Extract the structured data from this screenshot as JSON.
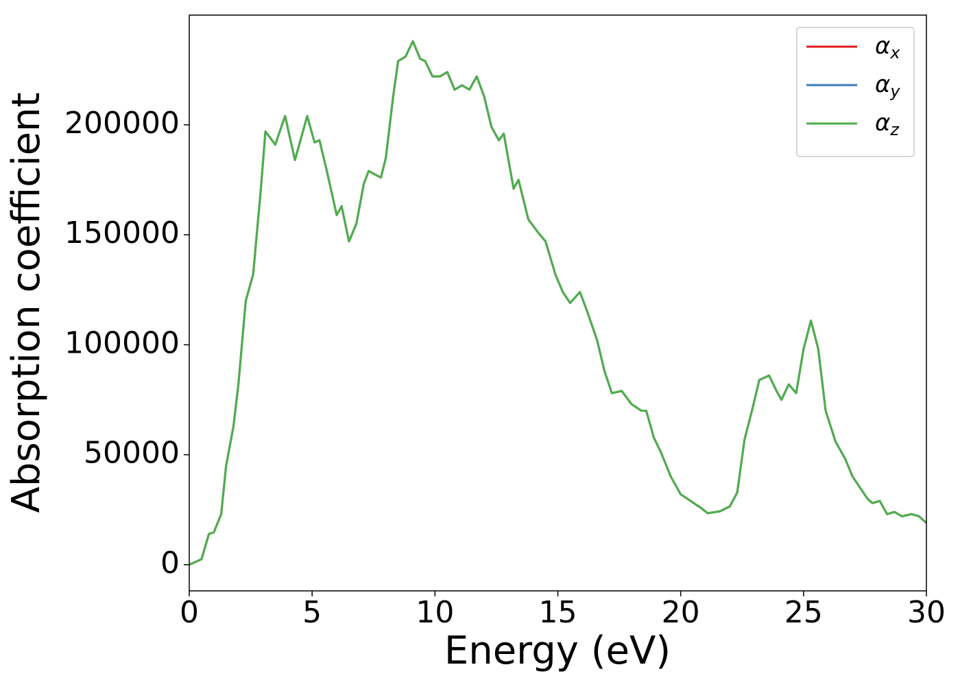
{
  "chart_data": {
    "type": "line",
    "xlabel": "Energy (eV)",
    "ylabel": "Absorption coefficient",
    "x": [
      0,
      0.5,
      0.8,
      1.0,
      1.3,
      1.5,
      1.8,
      2.0,
      2.3,
      2.6,
      2.9,
      3.1,
      3.5,
      3.9,
      4.3,
      4.8,
      5.1,
      5.3,
      5.6,
      6.0,
      6.2,
      6.5,
      6.8,
      7.1,
      7.3,
      7.8,
      8.0,
      8.3,
      8.5,
      8.8,
      9.1,
      9.4,
      9.6,
      9.9,
      10.2,
      10.5,
      10.8,
      11.1,
      11.4,
      11.7,
      12.0,
      12.3,
      12.6,
      12.8,
      13.2,
      13.4,
      13.8,
      14.2,
      14.5,
      14.9,
      15.2,
      15.5,
      15.9,
      16.2,
      16.6,
      16.9,
      17.2,
      17.6,
      18.0,
      18.4,
      18.6,
      18.9,
      19.2,
      19.6,
      20.0,
      20.4,
      20.8,
      21.1,
      21.6,
      22.0,
      22.3,
      22.6,
      22.9,
      23.2,
      23.6,
      23.9,
      24.1,
      24.4,
      24.7,
      25.0,
      25.3,
      25.6,
      25.9,
      26.3,
      26.7,
      27.0,
      27.3,
      27.6,
      27.8,
      28.1,
      28.4,
      28.7,
      29.0,
      29.4,
      29.7,
      30.0
    ],
    "series": [
      {
        "name": "αx",
        "color": "#e41a1c",
        "values": [
          0,
          2500,
          14000,
          14700,
          23000,
          45000,
          63000,
          82000,
          120000,
          132000,
          169000,
          197000,
          191000,
          204000,
          184000,
          204000,
          192000,
          193000,
          179000,
          159000,
          163000,
          147000,
          155000,
          173000,
          179000,
          176000,
          185000,
          213000,
          229000,
          231000,
          238000,
          230000,
          229000,
          222000,
          222000,
          224000,
          216000,
          218000,
          216000,
          222000,
          213000,
          199000,
          193000,
          196000,
          171000,
          175000,
          157000,
          151000,
          147000,
          132000,
          124000,
          119000,
          124000,
          115000,
          102000,
          88000,
          78000,
          79000,
          73000,
          70000,
          70000,
          58000,
          51000,
          40000,
          32000,
          29000,
          26000,
          23400,
          24300,
          26500,
          32800,
          57000,
          70000,
          84000,
          86000,
          79000,
          75000,
          82000,
          78000,
          98000,
          111000,
          98000,
          70000,
          56000,
          48000,
          40000,
          35000,
          30000,
          28000,
          29000,
          23000,
          24000,
          22000,
          23000,
          22000,
          19000
        ]
      },
      {
        "name": "αy",
        "color": "#377eb8",
        "values": [
          0,
          2500,
          14000,
          14700,
          23000,
          45000,
          63000,
          82000,
          120000,
          132000,
          169000,
          197000,
          191000,
          204000,
          184000,
          204000,
          192000,
          193000,
          179000,
          159000,
          163000,
          147000,
          155000,
          173000,
          179000,
          176000,
          185000,
          213000,
          229000,
          231000,
          238000,
          230000,
          229000,
          222000,
          222000,
          224000,
          216000,
          218000,
          216000,
          222000,
          213000,
          199000,
          193000,
          196000,
          171000,
          175000,
          157000,
          151000,
          147000,
          132000,
          124000,
          119000,
          124000,
          115000,
          102000,
          88000,
          78000,
          79000,
          73000,
          70000,
          70000,
          58000,
          51000,
          40000,
          32000,
          29000,
          26000,
          23400,
          24300,
          26500,
          32800,
          57000,
          70000,
          84000,
          86000,
          79000,
          75000,
          82000,
          78000,
          98000,
          111000,
          98000,
          70000,
          56000,
          48000,
          40000,
          35000,
          30000,
          28000,
          29000,
          23000,
          24000,
          22000,
          23000,
          22000,
          19000
        ]
      },
      {
        "name": "αz",
        "color": "#4daf4a",
        "values": [
          0,
          2500,
          14000,
          14700,
          23000,
          45000,
          63000,
          82000,
          120000,
          132000,
          169000,
          197000,
          191000,
          204000,
          184000,
          204000,
          192000,
          193000,
          179000,
          159000,
          163000,
          147000,
          155000,
          173000,
          179000,
          176000,
          185000,
          213000,
          229000,
          231000,
          238000,
          230000,
          229000,
          222000,
          222000,
          224000,
          216000,
          218000,
          216000,
          222000,
          213000,
          199000,
          193000,
          196000,
          171000,
          175000,
          157000,
          151000,
          147000,
          132000,
          124000,
          119000,
          124000,
          115000,
          102000,
          88000,
          78000,
          79000,
          73000,
          70000,
          70000,
          58000,
          51000,
          40000,
          32000,
          29000,
          26000,
          23400,
          24300,
          26500,
          32800,
          57000,
          70000,
          84000,
          86000,
          79000,
          75000,
          82000,
          78000,
          98000,
          111000,
          98000,
          70000,
          56000,
          48000,
          40000,
          35000,
          30000,
          28000,
          29000,
          23000,
          24000,
          22000,
          23000,
          22000,
          19000
        ]
      }
    ],
    "xlim": [
      0,
      30
    ],
    "xticks": [
      0,
      5,
      10,
      15,
      20,
      25,
      30
    ],
    "ylim": [
      -11900,
      249900
    ],
    "yticks": [
      0,
      50000,
      100000,
      150000,
      200000
    ],
    "grid": false,
    "legend": "upper right"
  }
}
